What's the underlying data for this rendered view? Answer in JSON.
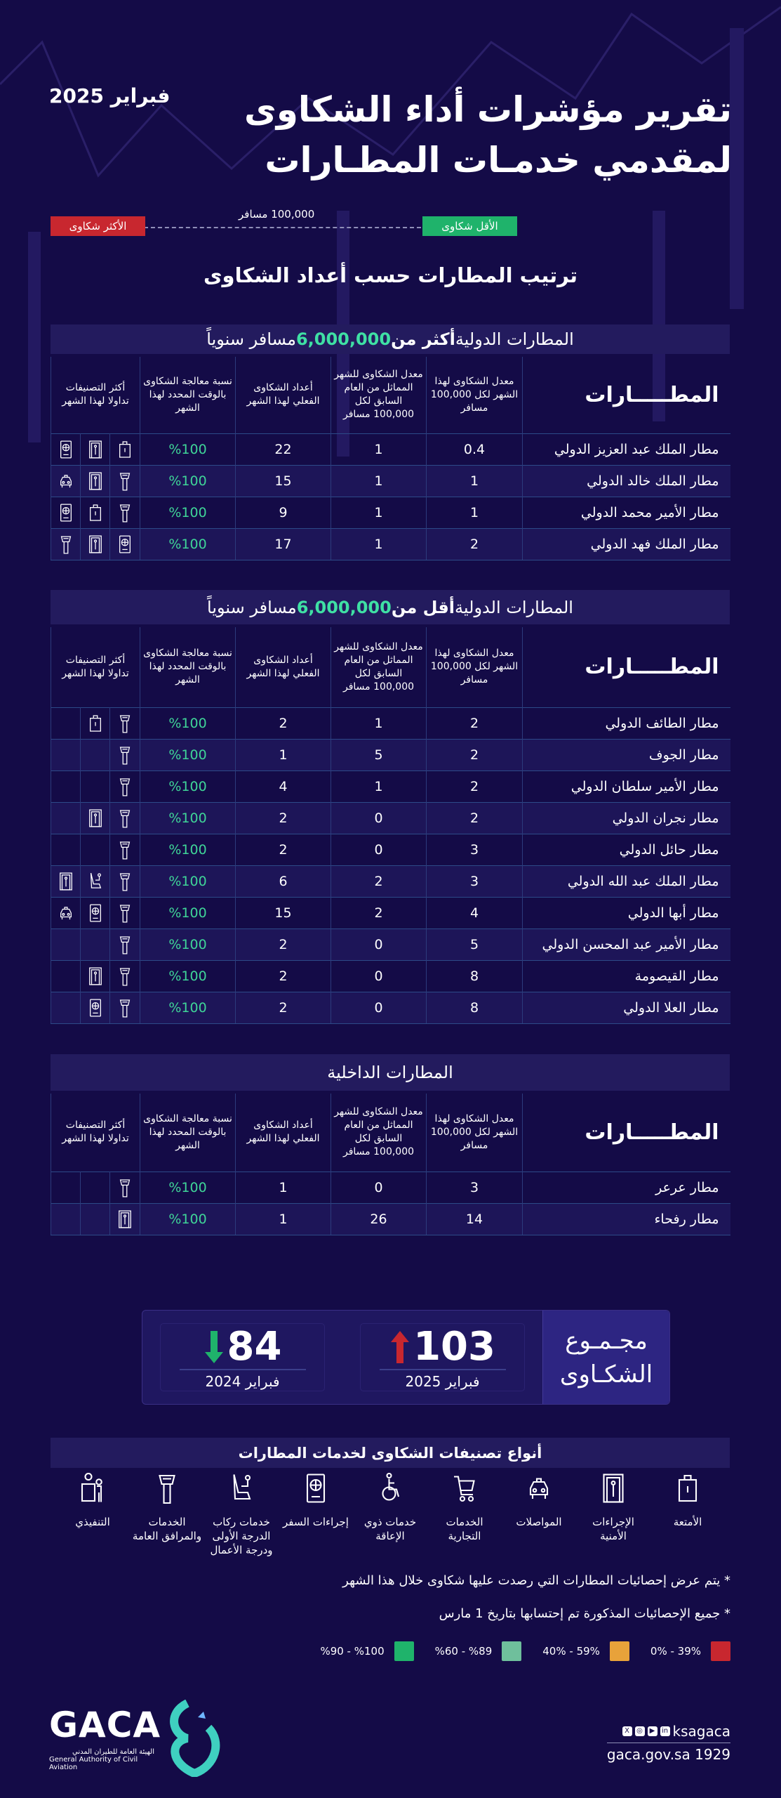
{
  "header": {
    "title_line1": "تقرير مؤشرات أداء الشكاوى",
    "title_line2": "لمقدمي خدمـات المطـارات",
    "date": "فبراير 2025"
  },
  "legend": {
    "most": "الأكثر شكاوى",
    "least": "الأقل شكاوى",
    "per": "100,000 مسافر",
    "most_color": "#c8272f",
    "least_color": "#1fb36b"
  },
  "section_title": "ترتيب المطارات حسب أعداد الشكاوى",
  "columns": {
    "name": "المطـــــارات",
    "rate": "معدل الشكاوى لهذا الشهر لكل 100,000 مسافر",
    "prev": "معدل الشكاوى للشهر المماثل من العام السابق لكل 100,000 مسافر",
    "count": "أعداد الشكاوى الفعلي لهذا الشهر",
    "pct": "نسبة معالجة الشكاوى بالوقت المحدد لهذا الشهر",
    "cats": "أكثر التصنيفات تداولا لهذا الشهر"
  },
  "tables": [
    {
      "title": {
        "a": "المطارات الدولية ",
        "b": "أكثر من ",
        "num": "6,000,000",
        "c": " مسافر سنوياً"
      },
      "rows": [
        {
          "name": "مطار الملك عبد العزيز الدولي",
          "rate": "0.4",
          "prev": "1",
          "count": "22",
          "pct": "%100",
          "icons": [
            "luggage",
            "security",
            "passport"
          ]
        },
        {
          "name": "مطار الملك خالد الدولي",
          "rate": "1",
          "prev": "1",
          "count": "15",
          "pct": "%100",
          "icons": [
            "tower",
            "security",
            "taxi"
          ]
        },
        {
          "name": "مطار الأمير محمد الدولي",
          "rate": "1",
          "prev": "1",
          "count": "9",
          "pct": "%100",
          "icons": [
            "tower",
            "luggage",
            "passport"
          ]
        },
        {
          "name": "مطار الملك فهد الدولي",
          "rate": "2",
          "prev": "1",
          "count": "17",
          "pct": "%100",
          "icons": [
            "passport",
            "security",
            "tower"
          ]
        }
      ]
    },
    {
      "title": {
        "a": "المطارات الدولية ",
        "b": "أقل من ",
        "num": "6,000,000",
        "c": " مسافر سنوياً"
      },
      "rows": [
        {
          "name": "مطار الطائف الدولي",
          "rate": "2",
          "prev": "1",
          "count": "2",
          "pct": "%100",
          "icons": [
            "tower",
            "luggage"
          ]
        },
        {
          "name": "مطار الجوف",
          "rate": "2",
          "prev": "5",
          "count": "1",
          "pct": "%100",
          "icons": [
            "tower"
          ]
        },
        {
          "name": "مطار الأمير سلطان الدولي",
          "rate": "2",
          "prev": "1",
          "count": "4",
          "pct": "%100",
          "icons": [
            "tower"
          ]
        },
        {
          "name": "مطار نجران الدولي",
          "rate": "2",
          "prev": "0",
          "count": "2",
          "pct": "%100",
          "icons": [
            "tower",
            "security"
          ]
        },
        {
          "name": "مطار حائل الدولي",
          "rate": "3",
          "prev": "0",
          "count": "2",
          "pct": "%100",
          "icons": [
            "tower"
          ]
        },
        {
          "name": "مطار الملك عبد الله الدولي",
          "rate": "3",
          "prev": "2",
          "count": "6",
          "pct": "%100",
          "icons": [
            "tower",
            "first-class-seat",
            "security"
          ]
        },
        {
          "name": "مطار أبها الدولي",
          "rate": "4",
          "prev": "2",
          "count": "15",
          "pct": "%100",
          "icons": [
            "tower",
            "passport",
            "taxi"
          ]
        },
        {
          "name": "مطار الأمير عبد المحسن الدولي",
          "rate": "5",
          "prev": "0",
          "count": "2",
          "pct": "%100",
          "icons": [
            "tower"
          ]
        },
        {
          "name": "مطار القيصومة",
          "rate": "8",
          "prev": "0",
          "count": "2",
          "pct": "%100",
          "icons": [
            "tower",
            "security"
          ]
        },
        {
          "name": "مطار العلا الدولي",
          "rate": "8",
          "prev": "0",
          "count": "2",
          "pct": "%100",
          "icons": [
            "tower",
            "passport"
          ]
        }
      ]
    },
    {
      "title": {
        "a": "المطارات الداخلية",
        "b": "",
        "num": "",
        "c": ""
      },
      "rows": [
        {
          "name": "مطار عرعر",
          "rate": "3",
          "prev": "0",
          "count": "1",
          "pct": "%100",
          "icons": [
            "tower"
          ]
        },
        {
          "name": "مطار رفحاء",
          "rate": "14",
          "prev": "26",
          "count": "1",
          "pct": "%100",
          "icons": [
            "security"
          ]
        }
      ]
    }
  ],
  "totals": {
    "label_line1": "مجـمـوع",
    "label_line2": "الشكـاوى",
    "current": {
      "value": "103",
      "period": "فبراير 2025",
      "trend": "up",
      "color": "#c8272f"
    },
    "previous": {
      "value": "84",
      "period": "فبراير 2024",
      "trend": "down",
      "color": "#1fb36b"
    }
  },
  "categories": {
    "title": "أنواع تصنيفات الشكاوى لخدمات المطارات",
    "items": [
      {
        "icon": "luggage",
        "label": "الأمتعة"
      },
      {
        "icon": "security",
        "label": "الإجراءات الأمنية"
      },
      {
        "icon": "taxi",
        "label": "المواصلات"
      },
      {
        "icon": "cart",
        "label": "الخدمات التجارية"
      },
      {
        "icon": "wheelchair",
        "label": "خدمات ذوي الإعاقة"
      },
      {
        "icon": "passport",
        "label": "إجراءات السفر"
      },
      {
        "icon": "first-class-seat",
        "label": "خدمات ركاب الدرجة الأولى ودرجة الأعمال"
      },
      {
        "icon": "tower",
        "label": "الخدمات والمرافق العامة"
      },
      {
        "icon": "executive",
        "label": "التنفيذي"
      }
    ]
  },
  "notes": [
    "* يتم عرض إحصائيات المطارات التي رصدت عليها شكاوى خلال هذا الشهر",
    "* جميع الإحصائيات المذكورة تم إحتسابها بتاريخ   1 مارس"
  ],
  "scale": [
    {
      "label": "39% - 0%",
      "color": "#c8272f"
    },
    {
      "label": "59% - 40%",
      "color": "#e8a23a"
    },
    {
      "label": "%89 - %60",
      "color": "#6fbf9c"
    },
    {
      "label": "%100 - %90",
      "color": "#1fb36b"
    }
  ],
  "footer": {
    "logo": "GACA",
    "logo_ar": "الهيئة العامة للطيران المدني",
    "logo_en": "General Authority of Civil Aviation",
    "handle": "ksagaca",
    "site": "gaca.gov.sa 1929"
  }
}
